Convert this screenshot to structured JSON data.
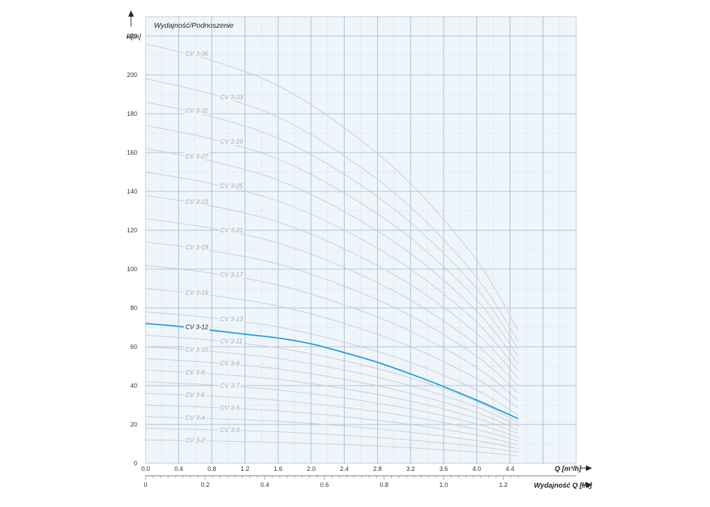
{
  "chart_data": {
    "type": "line",
    "title": "Wydajność/Podnoszenie",
    "ylabel": "H[m]",
    "xlabel": "Q [m³/h]",
    "x2label": "Wydajność Q [l/s]",
    "xlim": [
      0,
      5.2
    ],
    "ylim": [
      0,
      230
    ],
    "x_ticks": [
      "0.0",
      "0.4",
      "0.8",
      "1.2",
      "1.6",
      "2.0",
      "2.4",
      "2.8",
      "3.2",
      "3.6",
      "4.0",
      "4.4"
    ],
    "y_ticks": [
      "0",
      "20",
      "40",
      "60",
      "80",
      "100",
      "120",
      "140",
      "160",
      "180",
      "200",
      "220"
    ],
    "x2_ticks": [
      "0",
      "0.2",
      "0.4",
      "0.6",
      "0.8",
      "1.0",
      "1.2"
    ],
    "grid": true,
    "highlight_color": "#1b9ad6",
    "curve_color": "#c8c8c8",
    "label_color": "#aaaaaa",
    "series": [
      {
        "name": "CV 3-2",
        "x": [
          0,
          0.8,
          1.6,
          2.4,
          3.2,
          4.0,
          4.5
        ],
        "values": [
          12.0,
          11.5,
          10.8,
          9.6,
          8.0,
          5.8,
          3.8
        ]
      },
      {
        "name": "CV 3-3",
        "x": [
          0,
          0.8,
          1.6,
          2.4,
          3.2,
          4.0,
          4.5
        ],
        "values": [
          18.0,
          17.3,
          16.2,
          14.4,
          12.0,
          8.7,
          5.7
        ]
      },
      {
        "name": "CV 3-4",
        "x": [
          0,
          0.8,
          1.6,
          2.4,
          3.2,
          4.0,
          4.5
        ],
        "values": [
          24.0,
          23.0,
          21.6,
          19.2,
          16.0,
          11.6,
          7.6
        ]
      },
      {
        "name": "CV 3-5",
        "x": [
          0,
          0.8,
          1.6,
          2.4,
          3.2,
          4.0,
          4.5
        ],
        "values": [
          30.0,
          28.8,
          27.0,
          24.0,
          20.0,
          14.5,
          9.5
        ]
      },
      {
        "name": "CV 3-6",
        "x": [
          0,
          0.8,
          1.6,
          2.4,
          3.2,
          4.0,
          4.5
        ],
        "values": [
          36.0,
          34.6,
          32.4,
          28.8,
          24.0,
          17.4,
          11.4
        ]
      },
      {
        "name": "CV 3-7",
        "x": [
          0,
          0.8,
          1.6,
          2.4,
          3.2,
          4.0,
          4.5
        ],
        "values": [
          42.0,
          40.3,
          37.8,
          33.6,
          28.0,
          20.3,
          13.3
        ]
      },
      {
        "name": "CV 3-8",
        "x": [
          0,
          0.8,
          1.6,
          2.4,
          3.2,
          4.0,
          4.5
        ],
        "values": [
          48.0,
          46.1,
          43.2,
          38.4,
          32.0,
          23.2,
          15.2
        ]
      },
      {
        "name": "CV 3-9",
        "x": [
          0,
          0.8,
          1.6,
          2.4,
          3.2,
          4.0,
          4.5
        ],
        "values": [
          54.0,
          51.8,
          48.6,
          43.2,
          36.0,
          26.1,
          17.1
        ]
      },
      {
        "name": "CV 3-10",
        "x": [
          0,
          0.8,
          1.6,
          2.4,
          3.2,
          4.0,
          4.5
        ],
        "values": [
          60.0,
          57.6,
          54.0,
          48.0,
          40.0,
          29.0,
          19.0
        ]
      },
      {
        "name": "CV 3-11",
        "x": [
          0,
          0.8,
          1.6,
          2.4,
          3.2,
          4.0,
          4.5
        ],
        "values": [
          66.0,
          63.4,
          59.4,
          52.8,
          44.0,
          31.9,
          20.9
        ]
      },
      {
        "name": "CV 3-12",
        "highlight": true,
        "x": [
          0,
          0.4,
          0.8,
          1.2,
          1.6,
          2.0,
          2.4,
          2.8,
          3.2,
          3.6,
          4.0,
          4.5
        ],
        "values": [
          72.0,
          70.5,
          68.5,
          66.5,
          64.5,
          61.5,
          57.0,
          52.0,
          46.0,
          39.5,
          32.5,
          23.0
        ]
      },
      {
        "name": "CV 3-13",
        "x": [
          0,
          0.8,
          1.6,
          2.4,
          3.2,
          4.0,
          4.5
        ],
        "values": [
          78.0,
          74.9,
          70.2,
          62.4,
          52.0,
          37.7,
          24.7
        ]
      },
      {
        "name": "CV 3-15",
        "x": [
          0,
          0.8,
          1.6,
          2.4,
          3.2,
          4.0,
          4.5
        ],
        "values": [
          90.0,
          86.4,
          81.0,
          72.0,
          60.0,
          43.5,
          28.5
        ]
      },
      {
        "name": "CV 3-17",
        "x": [
          0,
          0.8,
          1.6,
          2.4,
          3.2,
          4.0,
          4.5
        ],
        "values": [
          102.0,
          97.9,
          91.8,
          81.6,
          68.0,
          49.3,
          32.3
        ]
      },
      {
        "name": "CV 3-19",
        "x": [
          0,
          0.8,
          1.6,
          2.4,
          3.2,
          4.0,
          4.5
        ],
        "values": [
          114.0,
          109.4,
          102.6,
          91.2,
          76.0,
          55.1,
          36.1
        ]
      },
      {
        "name": "CV 3-21",
        "x": [
          0,
          0.8,
          1.6,
          2.4,
          3.2,
          4.0,
          4.5
        ],
        "values": [
          126.0,
          121.0,
          113.4,
          100.8,
          84.0,
          60.9,
          39.9
        ]
      },
      {
        "name": "CV 3-23",
        "x": [
          0,
          0.8,
          1.6,
          2.4,
          3.2,
          4.0,
          4.5
        ],
        "values": [
          138.0,
          132.5,
          124.2,
          110.4,
          92.0,
          66.7,
          43.7
        ]
      },
      {
        "name": "CV 3-25",
        "x": [
          0,
          0.8,
          1.6,
          2.4,
          3.2,
          4.0,
          4.5
        ],
        "values": [
          150.0,
          144.0,
          135.0,
          120.0,
          100.0,
          72.5,
          47.5
        ]
      },
      {
        "name": "CV 3-27",
        "x": [
          0,
          0.8,
          1.6,
          2.4,
          3.2,
          4.0,
          4.5
        ],
        "values": [
          162.0,
          155.5,
          145.8,
          129.6,
          108.0,
          78.3,
          51.3
        ]
      },
      {
        "name": "CV 3-29",
        "x": [
          0,
          0.8,
          1.6,
          2.4,
          3.2,
          4.0,
          4.5
        ],
        "values": [
          174.0,
          167.0,
          156.6,
          139.2,
          116.0,
          84.1,
          55.1
        ]
      },
      {
        "name": "CV 3-31",
        "x": [
          0,
          0.8,
          1.6,
          2.4,
          3.2,
          4.0,
          4.5
        ],
        "values": [
          186.0,
          178.6,
          167.4,
          148.8,
          124.0,
          89.9,
          58.9
        ]
      },
      {
        "name": "CV 3-33",
        "x": [
          0,
          0.8,
          1.6,
          2.4,
          3.2,
          4.0,
          4.5
        ],
        "values": [
          198.0,
          190.1,
          178.2,
          158.4,
          132.0,
          95.7,
          62.7
        ]
      },
      {
        "name": "CV 3-36",
        "x": [
          0,
          0.8,
          1.6,
          2.4,
          3.2,
          4.0,
          4.5
        ],
        "values": [
          216.0,
          207.4,
          194.4,
          172.8,
          144.0,
          104.4,
          68.4
        ]
      }
    ]
  }
}
